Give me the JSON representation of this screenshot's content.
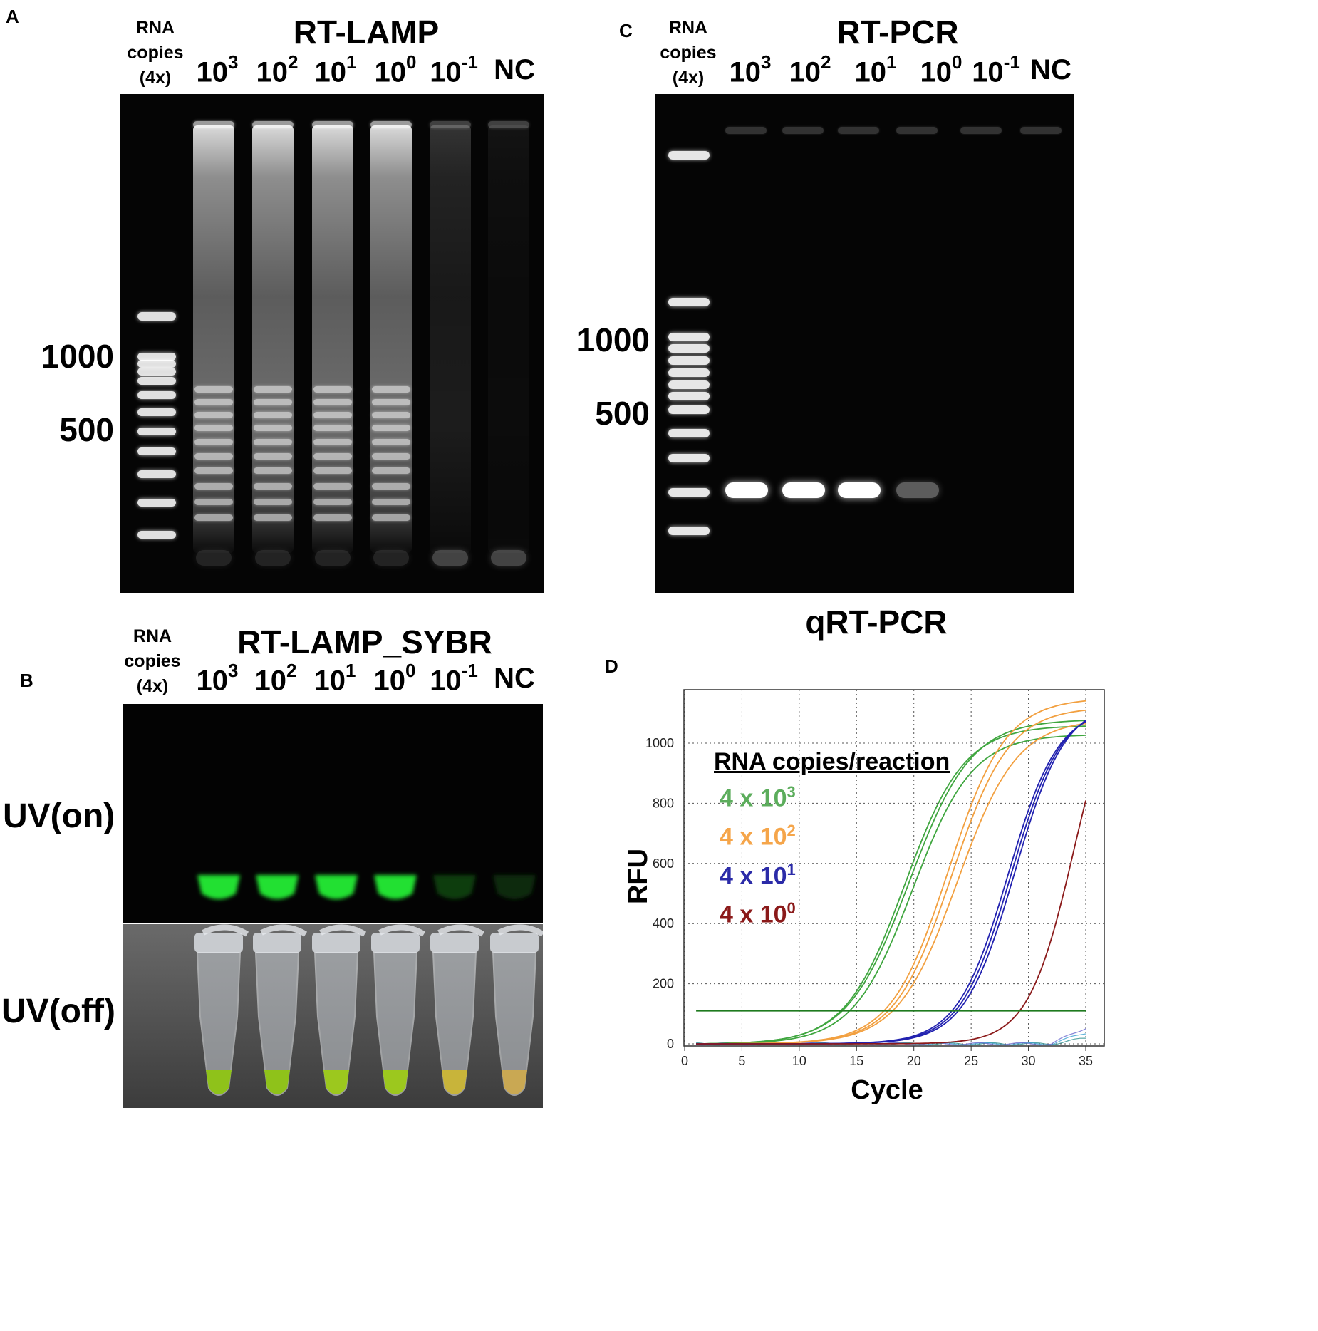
{
  "panelA": {
    "letter": "A",
    "rna_label": [
      "RNA",
      "copies",
      "(4x)"
    ],
    "title": "RT-LAMP",
    "lanes": [
      {
        "base": "10",
        "exp": "3"
      },
      {
        "base": "10",
        "exp": "2"
      },
      {
        "base": "10",
        "exp": "1"
      },
      {
        "base": "10",
        "exp": "0"
      },
      {
        "base": "10",
        "exp": "-1"
      },
      {
        "base": "NC",
        "exp": ""
      }
    ],
    "size_labels": [
      "1000",
      "500"
    ]
  },
  "panelB": {
    "letter": "B",
    "rna_label": [
      "RNA",
      "copies",
      "(4x)"
    ],
    "title": "RT-LAMP_SYBR",
    "lanes": [
      {
        "base": "10",
        "exp": "3"
      },
      {
        "base": "10",
        "exp": "2"
      },
      {
        "base": "10",
        "exp": "1"
      },
      {
        "base": "10",
        "exp": "0"
      },
      {
        "base": "10",
        "exp": "-1"
      },
      {
        "base": "NC",
        "exp": ""
      }
    ],
    "uv_on": "UV(on)",
    "uv_off": "UV(off)",
    "tube_colors": [
      "#8fc21a",
      "#8fc21a",
      "#9cc81e",
      "#9cc81e",
      "#c8b43a",
      "#c9a853"
    ],
    "glow_colors": [
      "#22e030",
      "#22e030",
      "#22e030",
      "#22e030",
      "#0d3d10",
      "#0a2c0c"
    ]
  },
  "panelC": {
    "letter": "C",
    "rna_label": [
      "RNA",
      "copies",
      "(4x)"
    ],
    "title": "RT-PCR",
    "lanes": [
      {
        "base": "10",
        "exp": "3"
      },
      {
        "base": "10",
        "exp": "2"
      },
      {
        "base": "10",
        "exp": "1"
      },
      {
        "base": "10",
        "exp": "0"
      },
      {
        "base": "10",
        "exp": "-1"
      },
      {
        "base": "NC",
        "exp": ""
      }
    ],
    "size_labels": [
      "1000",
      "500"
    ]
  },
  "panelD": {
    "letter": "D",
    "title": "qRT-PCR",
    "legend_title": "RNA copies/reaction",
    "legend": [
      {
        "prefix": "4 x 10",
        "exp": "3",
        "color": "#5cad5c"
      },
      {
        "prefix": "4 x 10",
        "exp": "2",
        "color": "#f5a54a"
      },
      {
        "prefix": "4 x 10",
        "exp": "1",
        "color": "#2b2ba8"
      },
      {
        "prefix": "4 x 10",
        "exp": "0",
        "color": "#8b1a1a"
      }
    ]
  },
  "chart_data": {
    "type": "line",
    "xlabel": "Cycle",
    "ylabel": "RFU",
    "xlim": [
      0,
      35
    ],
    "ylim": [
      -20,
      1180
    ],
    "xticks": [
      0,
      5,
      10,
      15,
      20,
      25,
      30,
      35
    ],
    "yticks": [
      0,
      200,
      400,
      600,
      800,
      1000
    ],
    "grid": true,
    "threshold": {
      "value": 110,
      "color": "#1f7a1f"
    },
    "series": [
      {
        "name": "4 x 10^3",
        "color": "#3fa63f",
        "curves": [
          {
            "midpoint": 19.2,
            "plateau": 1060,
            "slope": 2.6
          },
          {
            "midpoint": 19.6,
            "plateau": 1080,
            "slope": 2.7
          },
          {
            "midpoint": 19.9,
            "plateau": 1030,
            "slope": 2.6
          }
        ]
      },
      {
        "name": "4 x 10^2",
        "color": "#f2a040",
        "curves": [
          {
            "midpoint": 23.0,
            "plateau": 1150,
            "slope": 2.5
          },
          {
            "midpoint": 23.3,
            "plateau": 1120,
            "slope": 2.5
          },
          {
            "midpoint": 23.8,
            "plateau": 1080,
            "slope": 2.6
          }
        ]
      },
      {
        "name": "4 x 10^1",
        "color": "#2222b0",
        "curves": [
          {
            "midpoint": 28.2,
            "plateau": 1120,
            "slope": 2.2
          },
          {
            "midpoint": 28.5,
            "plateau": 1130,
            "slope": 2.2
          },
          {
            "midpoint": 28.8,
            "plateau": 1140,
            "slope": 2.2
          }
        ]
      },
      {
        "name": "4 x 10^0",
        "color": "#8b1a1a",
        "curves": [
          {
            "midpoint": 34.0,
            "plateau": 1300,
            "slope": 2.0
          }
        ]
      }
    ]
  }
}
